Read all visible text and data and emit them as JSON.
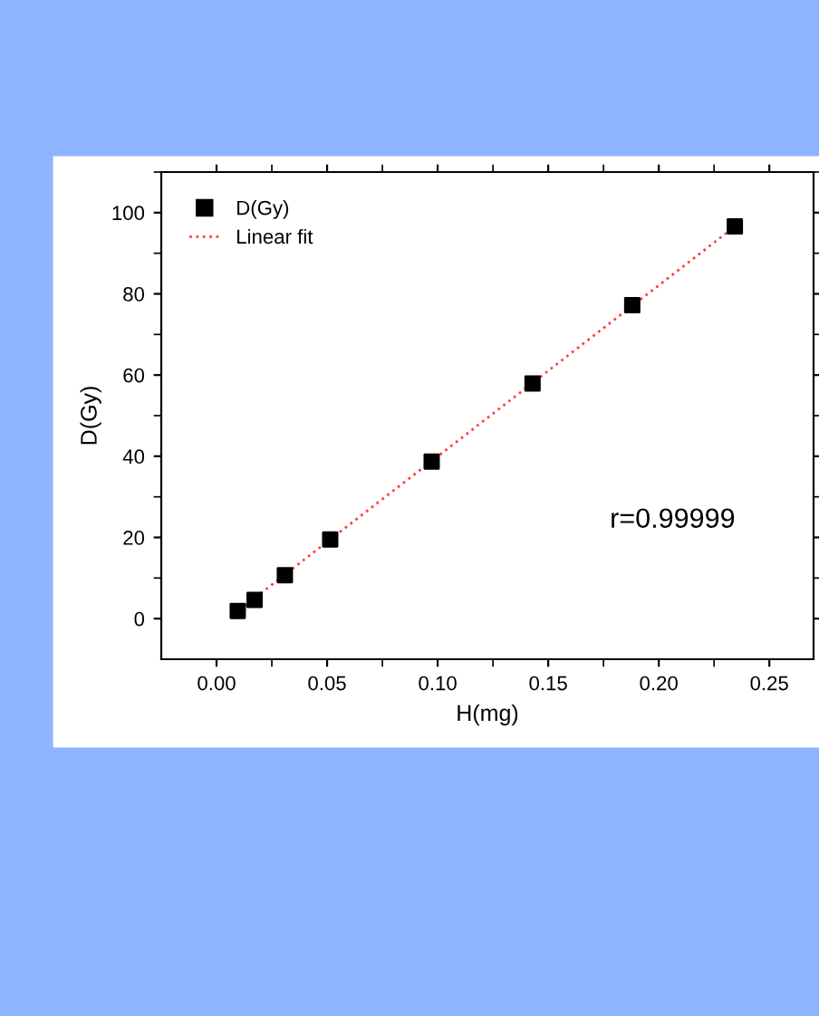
{
  "chart_data": {
    "type": "scatter",
    "xlabel": "H(mg)",
    "ylabel": "D(Gy)",
    "series": [
      {
        "name": "D(Gy)",
        "color": "#000000",
        "marker": "square",
        "x": [
          0.0096,
          0.0172,
          0.0309,
          0.0514,
          0.0973,
          0.1429,
          0.188,
          0.2344
        ],
        "values": [
          1.9,
          4.6,
          10.7,
          19.5,
          38.7,
          57.9,
          77.2,
          96.6
        ]
      },
      {
        "name": "Linear fit",
        "type": "line",
        "color": "#ff4040",
        "line_style": "dotted",
        "marker": "none",
        "x": [
          0.008,
          0.2344
        ],
        "values": [
          1.2,
          96.6
        ]
      }
    ],
    "xlim": [
      -0.025,
      0.27
    ],
    "xticks": [
      {
        "value": 0,
        "label": "0.00"
      },
      0.05,
      {
        "value": 0.1,
        "label": "0.10"
      },
      0.15,
      {
        "value": 0.2,
        "label": "0.20"
      },
      0.25
    ],
    "ylim": [
      -10,
      110
    ],
    "yticks": [
      0,
      20,
      40,
      60,
      80,
      100
    ],
    "annotations": [
      "r=0.99999"
    ],
    "legend": "top left",
    "grid": false
  }
}
